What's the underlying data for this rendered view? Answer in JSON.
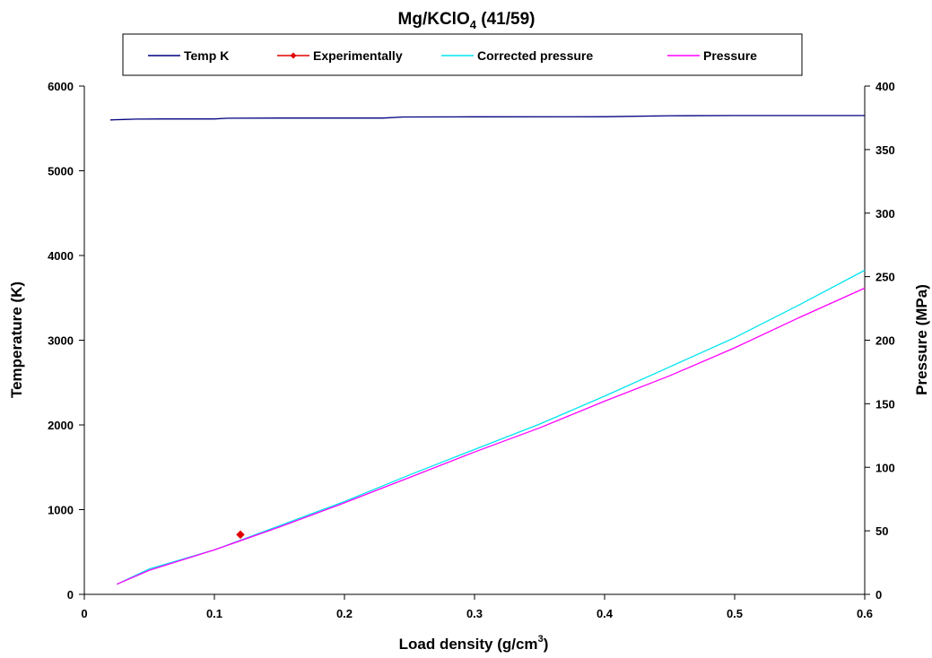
{
  "chart_data": {
    "type": "line",
    "title": {
      "main": "Mg/KClO",
      "sub": "4",
      "rest": " (41/59)"
    },
    "xlabel": {
      "main": "Load density (g/cm",
      "sup": "3",
      "rest": ")"
    },
    "ylabel": "Temperature (K)",
    "y2label": "Pressure (MPa)",
    "xlim": [
      0,
      0.6
    ],
    "ylim": [
      0,
      6000
    ],
    "y2lim": [
      0,
      400
    ],
    "x_ticks": [
      "0",
      "0.1",
      "0.2",
      "0.3",
      "0.4",
      "0.5",
      "0.6"
    ],
    "y_ticks": [
      "0",
      "1000",
      "2000",
      "3000",
      "4000",
      "5000",
      "6000"
    ],
    "y2_ticks": [
      "0",
      "50",
      "100",
      "150",
      "200",
      "250",
      "300",
      "350",
      "400"
    ],
    "grid": false,
    "legend_position": "top",
    "series": [
      {
        "name": "Temp K",
        "axis": "left",
        "color": "#000080",
        "marker": "none",
        "points": [
          [
            0.02,
            5600
          ],
          [
            0.03,
            5605
          ],
          [
            0.04,
            5610
          ],
          [
            0.06,
            5612
          ],
          [
            0.1,
            5612
          ],
          [
            0.11,
            5620
          ],
          [
            0.15,
            5622
          ],
          [
            0.23,
            5622
          ],
          [
            0.245,
            5635
          ],
          [
            0.3,
            5637
          ],
          [
            0.4,
            5638
          ],
          [
            0.45,
            5650
          ],
          [
            0.5,
            5652
          ],
          [
            0.6,
            5652
          ]
        ]
      },
      {
        "name": "Experimentally",
        "axis": "right",
        "color": "#e00000",
        "marker": "diamond",
        "points": [
          [
            0.12,
            47
          ]
        ]
      },
      {
        "name": "Corrected pressure",
        "axis": "right",
        "color": "#00e5ee",
        "marker": "none",
        "points": [
          [
            0.025,
            8
          ],
          [
            0.05,
            20
          ],
          [
            0.1,
            35
          ],
          [
            0.15,
            54
          ],
          [
            0.2,
            73
          ],
          [
            0.25,
            94
          ],
          [
            0.3,
            114
          ],
          [
            0.35,
            134
          ],
          [
            0.4,
            156
          ],
          [
            0.45,
            179
          ],
          [
            0.5,
            202
          ],
          [
            0.55,
            228
          ],
          [
            0.6,
            255
          ]
        ]
      },
      {
        "name": "Pressure",
        "axis": "right",
        "color": "#ff00ff",
        "marker": "none",
        "points": [
          [
            0.025,
            8
          ],
          [
            0.05,
            19
          ],
          [
            0.1,
            35
          ],
          [
            0.15,
            53
          ],
          [
            0.2,
            72
          ],
          [
            0.25,
            92
          ],
          [
            0.3,
            112
          ],
          [
            0.35,
            131
          ],
          [
            0.4,
            152
          ],
          [
            0.45,
            172
          ],
          [
            0.5,
            194
          ],
          [
            0.55,
            218
          ],
          [
            0.6,
            241
          ]
        ]
      }
    ]
  }
}
